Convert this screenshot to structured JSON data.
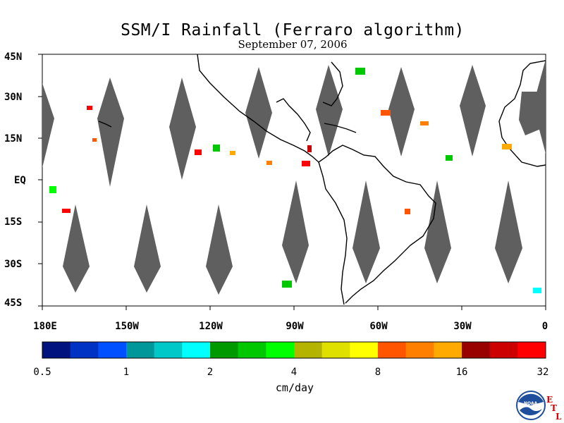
{
  "title": "SSM/I Rainfall (Ferraro algorithm)",
  "subtitle": "September 07, 2006",
  "lat_labels": [
    "45N",
    "30N",
    "15N",
    "EQ",
    "15S",
    "30S",
    "45S"
  ],
  "lon_labels": [
    "180E",
    "150W",
    "120W",
    "90W",
    "60W",
    "30W",
    "0"
  ],
  "colorbar": {
    "tick_labels": [
      "0.5",
      "1",
      "2",
      "4",
      "8",
      "16",
      "32"
    ],
    "units": "cm/day",
    "colors": [
      "#00137f",
      "#0033c4",
      "#0050ff",
      "#00979b",
      "#00c8c8",
      "#00ffff",
      "#009900",
      "#00c800",
      "#00ff00",
      "#b4b400",
      "#e0e000",
      "#ffff00",
      "#ff5500",
      "#ff8000",
      "#ffaa00",
      "#990000",
      "#cc0000",
      "#ff0000"
    ]
  },
  "logo": {
    "text": "NOAA",
    "etl": [
      "E",
      "T",
      "L"
    ]
  },
  "colors": {
    "swath_gap": "#5f5f5f",
    "coast": "#000000"
  }
}
